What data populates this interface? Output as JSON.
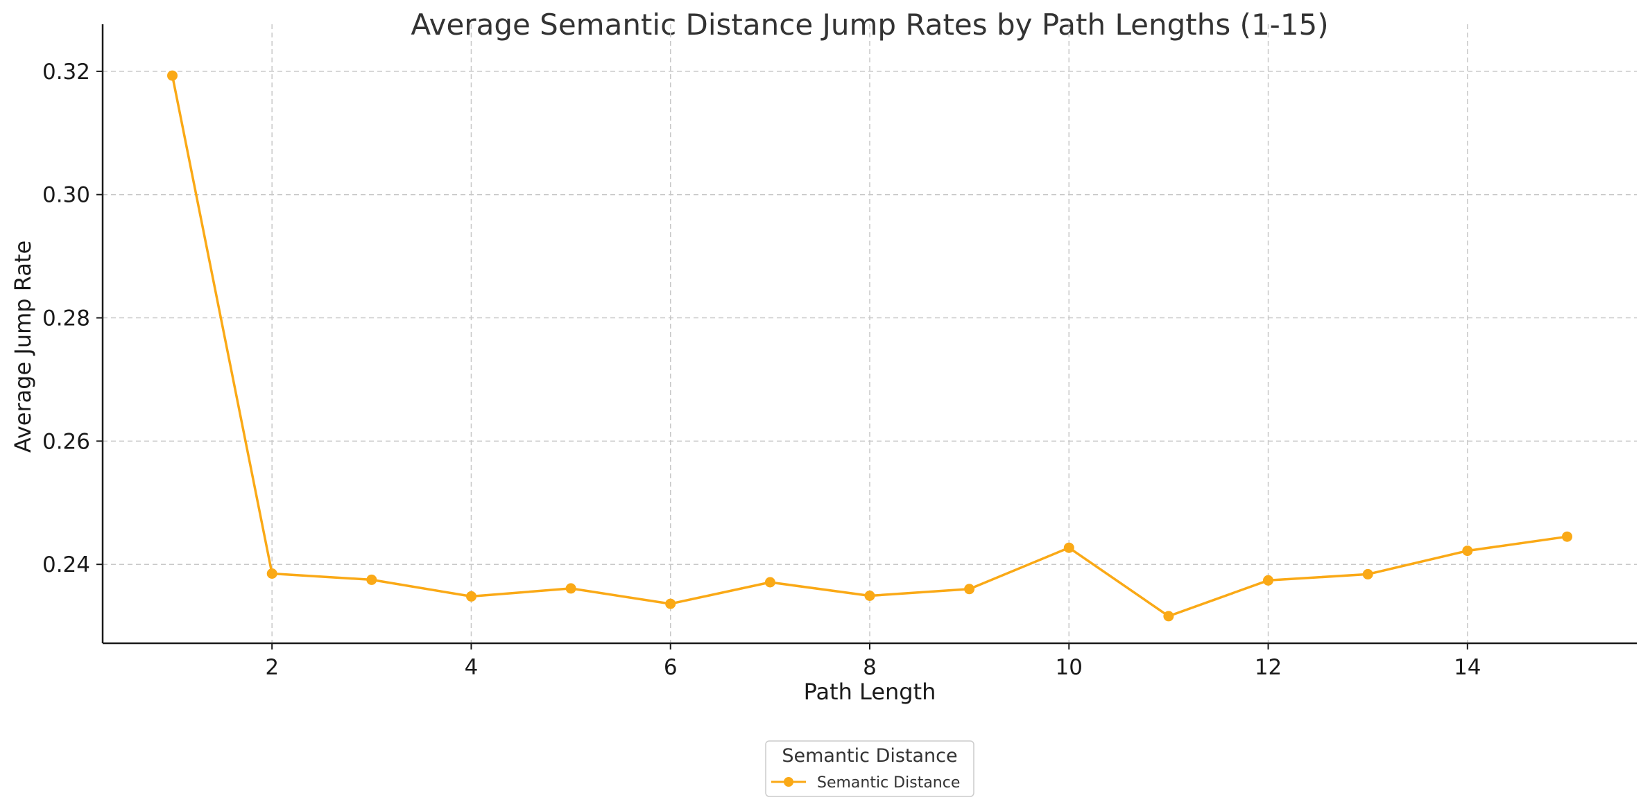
{
  "chart_data": {
    "type": "line",
    "title": "Average Semantic Distance Jump Rates by Path Lengths (1-15)",
    "xlabel": "Path Length",
    "ylabel": "Average Jump Rate",
    "x": [
      1,
      2,
      3,
      4,
      5,
      6,
      7,
      8,
      9,
      10,
      11,
      12,
      13,
      14,
      15
    ],
    "series": [
      {
        "name": "Semantic Distance",
        "color": "#FAA916",
        "marker": "circle",
        "values": [
          0.3193,
          0.2385,
          0.2375,
          0.2348,
          0.2361,
          0.2336,
          0.2371,
          0.2349,
          0.236,
          0.2427,
          0.2316,
          0.2374,
          0.2384,
          0.2422,
          0.2445
        ]
      }
    ],
    "xlim": [
      0.3,
      15.7
    ],
    "ylim": [
      0.2272,
      0.3237
    ],
    "xticks": [
      2,
      4,
      6,
      8,
      10,
      12,
      14
    ],
    "xtick_labels": [
      "2",
      "4",
      "6",
      "8",
      "10",
      "12",
      "14"
    ],
    "yticks": [
      0.24,
      0.26,
      0.28,
      0.3,
      0.32
    ],
    "ytick_labels": [
      "0.24",
      "0.26",
      "0.28",
      "0.30",
      "0.32"
    ],
    "grid": true,
    "legend": {
      "title": "Semantic Distance",
      "placement": "bottom-center, below plot"
    }
  }
}
